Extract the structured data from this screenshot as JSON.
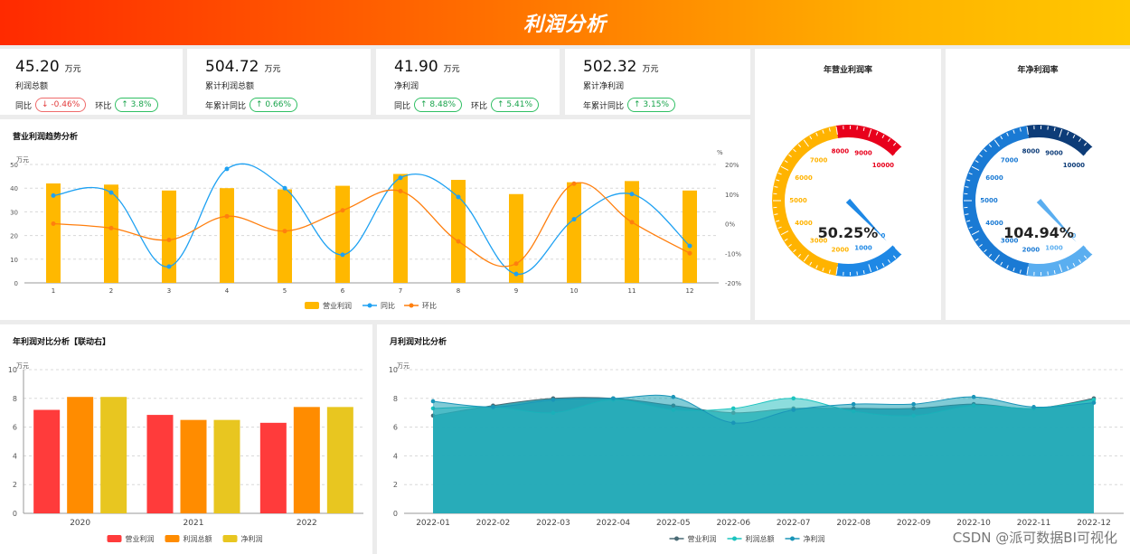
{
  "header": {
    "title": "利润分析"
  },
  "kpis": [
    {
      "value": "45.20",
      "unit": "万元",
      "label": "利润总额",
      "changes": [
        {
          "label": "同比",
          "text": "↓ -0.46%",
          "dir": "down"
        },
        {
          "label": "环比",
          "text": "↑ 3.8%",
          "dir": "up"
        }
      ]
    },
    {
      "value": "504.72",
      "unit": "万元",
      "label": "累计利润总额",
      "changes": [
        {
          "label": "年累计同比",
          "text": "↑ 0.66%",
          "dir": "up"
        }
      ]
    },
    {
      "value": "41.90",
      "unit": "万元",
      "label": "净利润",
      "changes": [
        {
          "label": "同比",
          "text": "↑ 8.48%",
          "dir": "up"
        },
        {
          "label": "环比",
          "text": "↑ 5.41%",
          "dir": "up"
        }
      ]
    },
    {
      "value": "502.32",
      "unit": "万元",
      "label": "累计净利润",
      "changes": [
        {
          "label": "年累计同比",
          "text": "↑ 3.15%",
          "dir": "up"
        }
      ]
    }
  ],
  "gauges": [
    {
      "title": "年营业利润率",
      "value_text": "50.25%",
      "value": 50.25,
      "max": 10000,
      "ticks": [
        "0",
        "1000",
        "2000",
        "3000",
        "4000",
        "5000",
        "6000",
        "7000",
        "8000",
        "9000",
        "10000"
      ],
      "colors": [
        "#1e88e5",
        "#ffb300",
        "#e8001c"
      ]
    },
    {
      "title": "年净利润率",
      "value_text": "104.94%",
      "value": 104.94,
      "max": 10000,
      "ticks": [
        "0",
        "1000",
        "2000",
        "3000",
        "4000",
        "5000",
        "6000",
        "7000",
        "8000",
        "9000",
        "10000"
      ],
      "colors": [
        "#5aaef0",
        "#1a7ad4",
        "#0d3c78"
      ]
    }
  ],
  "panels": {
    "trend_title": "营业利润趋势分析",
    "yearly_title": "年利润对比分析【联动右】",
    "monthly_title": "月利润对比分析"
  },
  "chart_data": [
    {
      "type": "bar",
      "title": "营业利润趋势分析",
      "ylabel": "万元",
      "y2label": "%",
      "ylim": [
        0,
        50
      ],
      "y2lim": [
        -20,
        20
      ],
      "categories": [
        "1",
        "2",
        "3",
        "4",
        "5",
        "6",
        "7",
        "8",
        "9",
        "10",
        "11",
        "12"
      ],
      "yticks": [
        "0",
        "10",
        "20",
        "30",
        "40",
        "50"
      ],
      "y2ticks": [
        "-20%",
        "-10%",
        "0%",
        "10%",
        "20%"
      ],
      "series": [
        {
          "name": "营业利润",
          "kind": "bar",
          "axis": "left",
          "color": "#ffb800",
          "values": [
            42,
            41.5,
            39,
            40,
            39.5,
            41,
            46,
            43.5,
            37.5,
            42.5,
            43,
            39
          ]
        },
        {
          "name": "同比",
          "kind": "line",
          "axis": "right",
          "color": "#1ea1f2",
          "values": [
            9.5,
            10.5,
            -14.5,
            18.5,
            12,
            -10.5,
            15.5,
            9,
            -17,
            1.5,
            10,
            -7.5
          ]
        },
        {
          "name": "环比",
          "kind": "line",
          "axis": "right",
          "color": "#ff7f0e",
          "values": [
            0,
            -1.5,
            -5.5,
            2.5,
            -2.5,
            4.5,
            11,
            -6,
            -13.5,
            13.5,
            0.5,
            -10
          ]
        }
      ],
      "legend": "bottom"
    },
    {
      "type": "bar",
      "title": "年利润对比分析【联动右】",
      "ylabel": "万元",
      "ylim": [
        0,
        10
      ],
      "categories": [
        "2020",
        "2021",
        "2022"
      ],
      "yticks": [
        "0",
        "2",
        "4",
        "6",
        "8",
        "10"
      ],
      "series": [
        {
          "name": "营业利润",
          "color": "#ff3b3b",
          "values": [
            7.2,
            6.85,
            6.3
          ]
        },
        {
          "name": "利润总额",
          "color": "#ff8c00",
          "values": [
            8.1,
            6.5,
            7.4
          ]
        },
        {
          "name": "净利润",
          "color": "#e8c620",
          "values": [
            8.1,
            6.5,
            7.4
          ]
        }
      ],
      "legend": "bottom"
    },
    {
      "type": "area",
      "title": "月利润对比分析",
      "ylabel": "万元",
      "ylim": [
        0,
        10
      ],
      "categories": [
        "2022-01",
        "2022-02",
        "2022-03",
        "2022-04",
        "2022-05",
        "2022-06",
        "2022-07",
        "2022-08",
        "2022-09",
        "2022-10",
        "2022-11",
        "2022-12"
      ],
      "yticks": [
        "0",
        "2",
        "4",
        "6",
        "8",
        "10"
      ],
      "series": [
        {
          "name": "营业利润",
          "color": "#4a6b75",
          "values": [
            6.8,
            7.5,
            8.0,
            8.0,
            7.5,
            7.0,
            7.3,
            7.3,
            7.3,
            7.6,
            7.3,
            8.0
          ]
        },
        {
          "name": "利润总额",
          "color": "#1bc4bf",
          "values": [
            7.3,
            7.4,
            7.0,
            7.9,
            7.2,
            7.3,
            8.0,
            7.1,
            6.8,
            7.5,
            7.3,
            7.9
          ]
        },
        {
          "name": "净利润",
          "color": "#1a95b8",
          "values": [
            7.8,
            7.4,
            7.9,
            8.0,
            8.1,
            6.3,
            7.2,
            7.6,
            7.6,
            8.1,
            7.4,
            7.7
          ]
        }
      ],
      "legend": "bottom"
    }
  ],
  "watermark": "CSDN @派可数据BI可视化"
}
